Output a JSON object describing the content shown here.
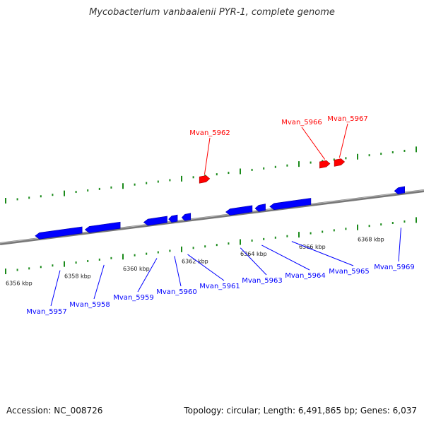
{
  "title": "Mycobacterium vanbaalenii PYR-1, complete genome",
  "footer": {
    "accession": "Accession: NC_008726",
    "summary": "Topology: circular; Length: 6,491,865 bp; Genes: 6,037"
  },
  "colors": {
    "forward_gene": "#ff0000",
    "reverse_gene": "#0000ff",
    "tick": "#1a8a1a",
    "genome_line": "#888888"
  },
  "scale": {
    "unit": "kbp",
    "ticks": [
      "6356 kbp",
      "6358 kbp",
      "6360 kbp",
      "6362 kbp",
      "6364 kbp",
      "6366 kbp",
      "6368 kbp"
    ]
  },
  "genes": [
    {
      "name": "Mvan_5957",
      "strand": "reverse",
      "start_kbp": 6356.6,
      "end_kbp": 6358.2
    },
    {
      "name": "Mvan_5958",
      "strand": "reverse",
      "start_kbp": 6358.3,
      "end_kbp": 6359.5
    },
    {
      "name": "Mvan_5959",
      "strand": "reverse",
      "start_kbp": 6360.3,
      "end_kbp": 6361.1
    },
    {
      "name": "Mvan_5960",
      "strand": "reverse",
      "start_kbp": 6361.15,
      "end_kbp": 6361.45
    },
    {
      "name": "Mvan_5961",
      "strand": "reverse",
      "start_kbp": 6361.6,
      "end_kbp": 6361.9
    },
    {
      "name": "Mvan_5962",
      "strand": "forward",
      "start_kbp": 6362.2,
      "end_kbp": 6362.55
    },
    {
      "name": "Mvan_5963",
      "strand": "reverse",
      "start_kbp": 6363.1,
      "end_kbp": 6364.0
    },
    {
      "name": "Mvan_5964",
      "strand": "reverse",
      "start_kbp": 6364.1,
      "end_kbp": 6364.45
    },
    {
      "name": "Mvan_5965",
      "strand": "reverse",
      "start_kbp": 6364.6,
      "end_kbp": 6366.0
    },
    {
      "name": "Mvan_5966",
      "strand": "forward",
      "start_kbp": 6366.3,
      "end_kbp": 6366.65
    },
    {
      "name": "Mvan_5967",
      "strand": "forward",
      "start_kbp": 6366.8,
      "end_kbp": 6367.15
    },
    {
      "name": "Mvan_5969",
      "strand": "reverse",
      "start_kbp": 6368.85,
      "end_kbp": 6369.2
    }
  ]
}
